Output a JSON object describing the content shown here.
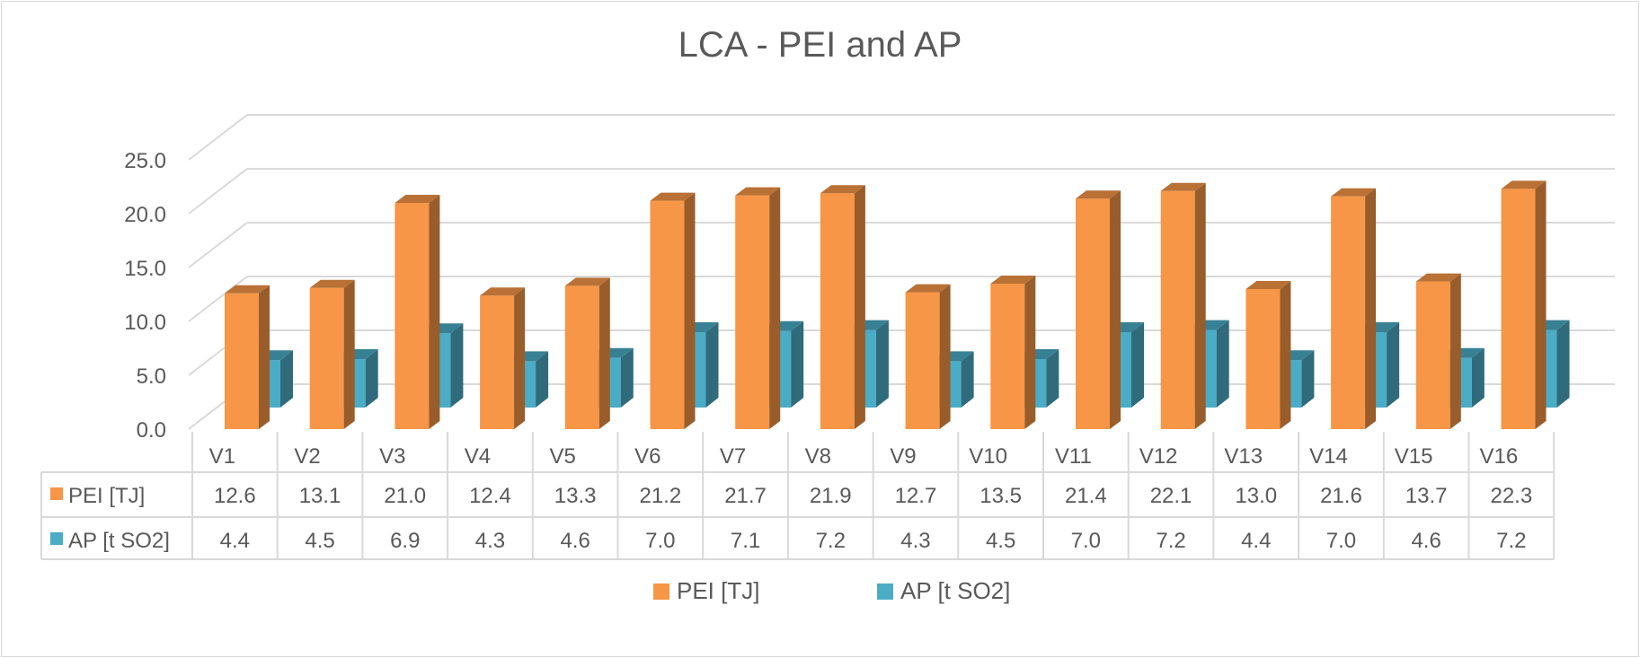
{
  "chart_data": {
    "type": "bar",
    "variant": "3d-clustered-column-with-data-table",
    "title": "LCA - PEI and AP",
    "xlabel": "",
    "ylabel": "",
    "ylim": [
      0,
      25
    ],
    "yticks": [
      0,
      5,
      10,
      15,
      20,
      25
    ],
    "ytick_labels": [
      "0.0",
      "5.0",
      "10.0",
      "15.0",
      "20.0",
      "25.0"
    ],
    "grid": true,
    "legend_position": "bottom",
    "categories": [
      "V1",
      "V2",
      "V3",
      "V4",
      "V5",
      "V6",
      "V7",
      "V8",
      "V9",
      "V10",
      "V11",
      "V12",
      "V13",
      "V14",
      "V15",
      "V16"
    ],
    "series": [
      {
        "name": "PEI  [TJ]",
        "color": "#F79646",
        "values": [
          12.6,
          13.1,
          21.0,
          12.4,
          13.3,
          21.2,
          21.7,
          21.9,
          12.7,
          13.5,
          21.4,
          22.1,
          13.0,
          21.6,
          13.7,
          22.3
        ],
        "labels": [
          "12.6",
          "13.1",
          "21.0",
          "12.4",
          "13.3",
          "21.2",
          "21.7",
          "21.9",
          "12.7",
          "13.5",
          "21.4",
          "22.1",
          "13.0",
          "21.6",
          "13.7",
          "22.3"
        ]
      },
      {
        "name": "AP [t SO2]",
        "color": "#4BACC6",
        "values": [
          4.4,
          4.5,
          6.9,
          4.3,
          4.6,
          7.0,
          7.1,
          7.2,
          4.3,
          4.5,
          7.0,
          7.2,
          4.4,
          7.0,
          4.6,
          7.2
        ],
        "labels": [
          "4.4",
          "4.5",
          "6.9",
          "4.3",
          "4.6",
          "7.0",
          "7.1",
          "7.2",
          "4.3",
          "4.5",
          "7.0",
          "7.2",
          "4.4",
          "7.0",
          "4.6",
          "7.2"
        ]
      }
    ]
  }
}
